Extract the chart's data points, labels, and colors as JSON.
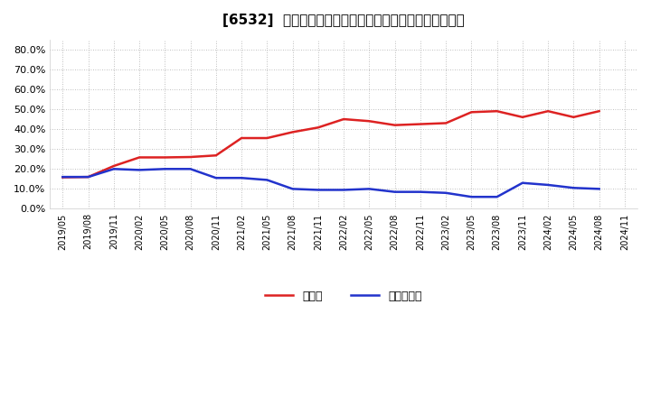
{
  "title": "[6532]  現預金、有利子負債の総資産に対する比率の推移",
  "cash_label": "現預金",
  "debt_label": "有利子負債",
  "cash_color": "#dd2222",
  "debt_color": "#2233cc",
  "line_width": 1.8,
  "ylim": [
    0.0,
    0.85
  ],
  "yticks": [
    0.0,
    0.1,
    0.2,
    0.3,
    0.4,
    0.5,
    0.6,
    0.7,
    0.8
  ],
  "background_color": "#ffffff",
  "grid_color": "#aaaaaa",
  "x_labels": [
    "2019/05",
    "2019/08",
    "2019/11",
    "2020/02",
    "2020/05",
    "2020/08",
    "2020/11",
    "2021/02",
    "2021/05",
    "2021/08",
    "2021/11",
    "2022/02",
    "2022/05",
    "2022/08",
    "2022/11",
    "2023/02",
    "2023/05",
    "2023/08",
    "2023/11",
    "2024/02",
    "2024/05",
    "2024/08",
    "2024/11"
  ],
  "cash_values": [
    0.158,
    0.16,
    0.215,
    0.258,
    0.258,
    0.26,
    0.268,
    0.355,
    0.355,
    0.385,
    0.408,
    0.45,
    0.44,
    0.42,
    0.425,
    0.43,
    0.485,
    0.49,
    0.46,
    0.49,
    0.46,
    0.49,
    null
  ],
  "debt_values": [
    0.16,
    0.16,
    0.2,
    0.195,
    0.2,
    0.2,
    0.155,
    0.155,
    0.145,
    0.1,
    0.095,
    0.095,
    0.1,
    0.085,
    0.085,
    0.08,
    0.06,
    0.06,
    0.13,
    0.12,
    0.105,
    0.1,
    null
  ]
}
